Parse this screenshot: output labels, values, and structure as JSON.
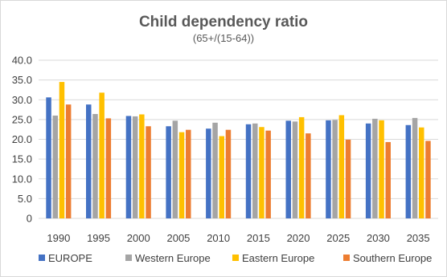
{
  "chart_data": {
    "type": "bar",
    "title": "Child dependency ratio",
    "subtitle": "(65+/(15-64))",
    "categories": [
      "1990",
      "1995",
      "2000",
      "2005",
      "2010",
      "2015",
      "2020",
      "2025",
      "2030",
      "2035"
    ],
    "ylim": [
      0,
      40
    ],
    "yticks": [
      "0",
      "5.0",
      "10.0",
      "15.0",
      "20.0",
      "25.0",
      "30.0",
      "35.0",
      "40.0"
    ],
    "grid": true,
    "legend_position": "bottom",
    "series": [
      {
        "name": "EUROPE",
        "color": "#4472c4",
        "values": [
          30.6,
          28.8,
          25.9,
          23.3,
          22.7,
          23.8,
          24.7,
          24.8,
          24.0,
          23.6
        ]
      },
      {
        "name": "Western Europe",
        "color": "#a5a5a5",
        "values": [
          26.0,
          26.4,
          25.8,
          24.7,
          24.2,
          24.0,
          24.5,
          24.9,
          25.2,
          25.4
        ]
      },
      {
        "name": "Eastern Europe",
        "color": "#ffc000",
        "values": [
          34.5,
          31.8,
          26.3,
          21.8,
          20.8,
          23.1,
          25.6,
          26.1,
          24.8,
          23.0
        ]
      },
      {
        "name": "Southern Europe",
        "color": "#ed7d31",
        "values": [
          28.8,
          25.3,
          23.3,
          22.4,
          22.4,
          22.2,
          21.5,
          19.9,
          19.3,
          19.6
        ]
      }
    ]
  }
}
